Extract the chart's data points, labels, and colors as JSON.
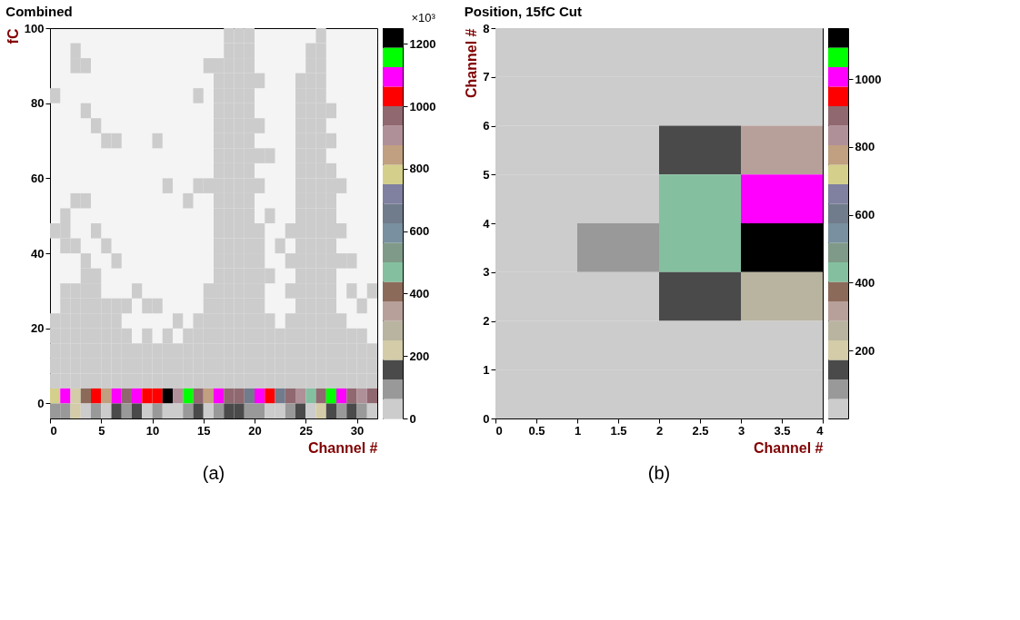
{
  "chart_data": [
    {
      "type": "heatmap",
      "title": "Combined",
      "xlabel": "Channel #",
      "ylabel": "fC",
      "clabel": "×10³",
      "xlim": [
        0,
        32
      ],
      "xticks": [
        0,
        5,
        10,
        15,
        20,
        25,
        30
      ],
      "ylim": [
        -4,
        100
      ],
      "yticks": [
        0,
        20,
        40,
        60,
        80,
        100
      ],
      "clim": [
        0,
        1250
      ],
      "cticks": [
        0,
        200,
        400,
        600,
        800,
        1000,
        1200
      ],
      "colors": [
        "#cccccc",
        "#999999",
        "#4a4a4a",
        "#d4cca8",
        "#b8b4a0",
        "#b8a09a",
        "#8c6a5a",
        "#84c0a0",
        "#7f9a88",
        "#7890a0",
        "#707c8c",
        "#8080a0",
        "#d4d08c",
        "#c0a080",
        "#b09098",
        "#906870",
        "#ff0000",
        "#ff00ff",
        "#00ff00",
        "#000000"
      ],
      "cells": [
        [
          null,
          null,
          null,
          null,
          null,
          null,
          null,
          null,
          null,
          null,
          null,
          null,
          null,
          null,
          null,
          null,
          null,
          30,
          30,
          30,
          null,
          null,
          null,
          null,
          null,
          null,
          30,
          null,
          null,
          null,
          null,
          null
        ],
        [
          null,
          null,
          30,
          null,
          null,
          null,
          null,
          null,
          null,
          null,
          null,
          null,
          null,
          null,
          null,
          null,
          null,
          30,
          30,
          30,
          null,
          null,
          null,
          null,
          null,
          30,
          30,
          null,
          null,
          null,
          null,
          null
        ],
        [
          null,
          null,
          30,
          30,
          null,
          null,
          null,
          null,
          null,
          null,
          null,
          null,
          null,
          null,
          null,
          30,
          30,
          30,
          30,
          30,
          null,
          null,
          null,
          null,
          null,
          30,
          30,
          null,
          null,
          null,
          null,
          null
        ],
        [
          null,
          null,
          null,
          null,
          null,
          null,
          null,
          null,
          null,
          null,
          null,
          null,
          null,
          null,
          null,
          null,
          30,
          30,
          30,
          30,
          30,
          null,
          null,
          null,
          30,
          30,
          30,
          null,
          null,
          null,
          null,
          null
        ],
        [
          30,
          null,
          null,
          null,
          null,
          null,
          null,
          null,
          null,
          null,
          null,
          null,
          null,
          null,
          30,
          null,
          30,
          30,
          30,
          30,
          null,
          null,
          null,
          null,
          30,
          30,
          30,
          null,
          null,
          null,
          null,
          null
        ],
        [
          null,
          null,
          null,
          30,
          null,
          null,
          null,
          null,
          null,
          null,
          null,
          null,
          null,
          null,
          null,
          null,
          30,
          30,
          30,
          30,
          null,
          null,
          null,
          null,
          30,
          30,
          30,
          30,
          null,
          null,
          null,
          null
        ],
        [
          null,
          null,
          null,
          null,
          30,
          null,
          null,
          null,
          null,
          null,
          null,
          null,
          null,
          null,
          null,
          null,
          30,
          30,
          30,
          30,
          30,
          null,
          null,
          null,
          30,
          30,
          30,
          null,
          null,
          null,
          null,
          null
        ],
        [
          null,
          null,
          null,
          null,
          null,
          30,
          30,
          null,
          null,
          null,
          30,
          null,
          null,
          null,
          null,
          null,
          30,
          30,
          30,
          30,
          null,
          null,
          null,
          null,
          30,
          30,
          30,
          30,
          null,
          null,
          null,
          null
        ],
        [
          null,
          null,
          null,
          null,
          null,
          null,
          null,
          null,
          null,
          null,
          null,
          null,
          null,
          null,
          null,
          null,
          30,
          30,
          30,
          30,
          30,
          30,
          null,
          null,
          30,
          30,
          30,
          null,
          null,
          null,
          null,
          null
        ],
        [
          null,
          null,
          null,
          null,
          null,
          null,
          null,
          null,
          null,
          null,
          null,
          null,
          null,
          null,
          null,
          null,
          30,
          30,
          30,
          30,
          null,
          null,
          null,
          null,
          30,
          30,
          30,
          30,
          null,
          null,
          null,
          null
        ],
        [
          null,
          null,
          null,
          null,
          null,
          null,
          null,
          null,
          null,
          null,
          null,
          30,
          null,
          null,
          30,
          30,
          30,
          30,
          30,
          30,
          30,
          null,
          null,
          null,
          30,
          30,
          30,
          30,
          30,
          null,
          null,
          null
        ],
        [
          null,
          null,
          30,
          30,
          null,
          null,
          null,
          null,
          null,
          null,
          null,
          null,
          null,
          30,
          null,
          null,
          30,
          30,
          30,
          30,
          null,
          null,
          null,
          null,
          30,
          30,
          30,
          30,
          null,
          null,
          null,
          null
        ],
        [
          null,
          30,
          null,
          null,
          null,
          null,
          null,
          null,
          null,
          null,
          null,
          null,
          null,
          null,
          null,
          null,
          30,
          30,
          30,
          30,
          null,
          30,
          null,
          null,
          30,
          30,
          30,
          30,
          null,
          null,
          null,
          null
        ],
        [
          30,
          30,
          null,
          null,
          30,
          null,
          null,
          null,
          null,
          null,
          null,
          null,
          null,
          null,
          null,
          null,
          30,
          30,
          30,
          30,
          30,
          null,
          null,
          30,
          30,
          30,
          30,
          30,
          30,
          null,
          null,
          null
        ],
        [
          null,
          30,
          30,
          null,
          null,
          30,
          null,
          null,
          null,
          null,
          null,
          null,
          null,
          null,
          null,
          null,
          30,
          30,
          30,
          30,
          30,
          null,
          30,
          null,
          30,
          30,
          30,
          30,
          null,
          null,
          null,
          null
        ],
        [
          null,
          null,
          null,
          30,
          null,
          null,
          30,
          null,
          null,
          null,
          null,
          null,
          null,
          null,
          null,
          null,
          30,
          30,
          30,
          30,
          30,
          null,
          null,
          30,
          30,
          30,
          30,
          30,
          30,
          30,
          null,
          null
        ],
        [
          null,
          null,
          null,
          30,
          30,
          null,
          null,
          null,
          null,
          null,
          null,
          null,
          null,
          null,
          null,
          null,
          30,
          30,
          30,
          30,
          30,
          30,
          null,
          null,
          30,
          30,
          30,
          30,
          null,
          null,
          null,
          null
        ],
        [
          null,
          30,
          30,
          30,
          30,
          null,
          null,
          null,
          30,
          null,
          null,
          null,
          null,
          null,
          null,
          30,
          30,
          30,
          30,
          30,
          30,
          null,
          null,
          30,
          30,
          30,
          30,
          30,
          null,
          30,
          null,
          30
        ],
        [
          null,
          30,
          30,
          30,
          30,
          30,
          30,
          30,
          null,
          30,
          30,
          null,
          null,
          null,
          null,
          30,
          30,
          30,
          30,
          30,
          30,
          null,
          null,
          null,
          30,
          30,
          30,
          30,
          null,
          null,
          30,
          null
        ],
        [
          30,
          30,
          30,
          30,
          30,
          30,
          30,
          null,
          null,
          null,
          null,
          null,
          30,
          null,
          30,
          30,
          30,
          30,
          30,
          30,
          30,
          30,
          null,
          30,
          30,
          30,
          30,
          30,
          30,
          null,
          null,
          null
        ],
        [
          30,
          30,
          30,
          30,
          30,
          30,
          30,
          30,
          null,
          30,
          null,
          30,
          null,
          30,
          30,
          30,
          30,
          30,
          30,
          30,
          30,
          30,
          30,
          30,
          30,
          30,
          30,
          30,
          30,
          30,
          30,
          null
        ],
        [
          30,
          30,
          30,
          30,
          30,
          30,
          30,
          30,
          30,
          30,
          30,
          30,
          30,
          30,
          30,
          30,
          30,
          30,
          30,
          30,
          30,
          30,
          30,
          30,
          30,
          30,
          30,
          30,
          30,
          30,
          30,
          30
        ],
        [
          30,
          30,
          30,
          30,
          30,
          30,
          30,
          30,
          30,
          30,
          30,
          30,
          30,
          30,
          30,
          30,
          30,
          30,
          30,
          30,
          30,
          30,
          30,
          30,
          30,
          30,
          30,
          30,
          30,
          30,
          30,
          30
        ],
        [
          30,
          30,
          30,
          30,
          30,
          30,
          30,
          30,
          30,
          30,
          30,
          30,
          30,
          30,
          30,
          30,
          30,
          30,
          30,
          30,
          30,
          30,
          30,
          30,
          30,
          30,
          30,
          30,
          30,
          30,
          30,
          30
        ],
        [
          780,
          1100,
          240,
          410,
          1030,
          840,
          1100,
          970,
          1100,
          1030,
          1030,
          1220,
          900,
          1150,
          970,
          840,
          1100,
          970,
          970,
          660,
          1100,
          1030,
          660,
          970,
          900,
          470,
          970,
          1150,
          1100,
          970,
          900,
          970
        ],
        [
          100,
          100,
          240,
          30,
          100,
          30,
          150,
          100,
          150,
          30,
          100,
          30,
          30,
          100,
          150,
          30,
          100,
          150,
          150,
          100,
          100,
          30,
          30,
          100,
          150,
          30,
          240,
          150,
          100,
          150,
          100,
          30
        ]
      ],
      "annotations": [
        "(a)"
      ]
    },
    {
      "type": "heatmap",
      "title": "Position, 15fC Cut",
      "xlabel": "Channel #",
      "ylabel": "Channel #",
      "xlim": [
        0,
        4
      ],
      "xticks": [
        0,
        0.5,
        1,
        1.5,
        2,
        2.5,
        3,
        3.5,
        4
      ],
      "ylim": [
        0,
        8
      ],
      "yticks": [
        0,
        1,
        2,
        3,
        4,
        5,
        6,
        7,
        8
      ],
      "clim": [
        0,
        1150
      ],
      "cticks": [
        200,
        400,
        600,
        800,
        1000
      ],
      "colors": [
        "#cccccc",
        "#999999",
        "#4a4a4a",
        "#d4cca8",
        "#b8b4a0",
        "#b8a09a",
        "#8c6a5a",
        "#84c0a0",
        "#7f9a88",
        "#7890a0",
        "#707c8c",
        "#8080a0",
        "#d4d08c",
        "#c0a080",
        "#b09098",
        "#906870",
        "#ff0000",
        "#ff00ff",
        "#00ff00",
        "#000000"
      ],
      "cells": [
        [
          30,
          30,
          30,
          30
        ],
        [
          30,
          30,
          30,
          30
        ],
        [
          30,
          30,
          145,
          320
        ],
        [
          30,
          30,
          430,
          1010
        ],
        [
          30,
          85,
          430,
          1120
        ],
        [
          30,
          30,
          145,
          260
        ],
        [
          30,
          30,
          30,
          30
        ],
        [
          30,
          30,
          30,
          30
        ]
      ],
      "annotations": [
        "(b)"
      ]
    }
  ]
}
